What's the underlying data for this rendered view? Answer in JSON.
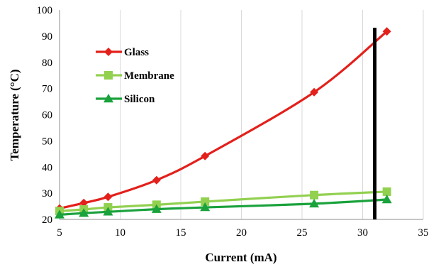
{
  "chart_data": {
    "type": "line",
    "xlabel": "Current  (mA)",
    "ylabel": "Temperature  (°C)",
    "xlim": [
      5,
      35
    ],
    "ylim": [
      20,
      100
    ],
    "xticks": [
      5,
      10,
      15,
      20,
      25,
      30,
      35
    ],
    "yticks": [
      20,
      30,
      40,
      50,
      60,
      70,
      80,
      90,
      100
    ],
    "grid": "vertical",
    "legend_position": "top-left",
    "series": [
      {
        "name": "Glass",
        "color": "#e3201b",
        "marker": "diamond",
        "x": [
          5,
          7,
          9,
          13,
          17,
          26,
          32
        ],
        "y": [
          24.2,
          26.3,
          28.6,
          35.0,
          44.2,
          68.6,
          91.8
        ]
      },
      {
        "name": "Membrane",
        "color": "#92d050",
        "marker": "square",
        "x": [
          5,
          7,
          9,
          13,
          17,
          26,
          32
        ],
        "y": [
          23.2,
          23.8,
          24.6,
          25.6,
          26.8,
          29.3,
          30.6
        ]
      },
      {
        "name": "Silicon",
        "color": "#1aa23c",
        "marker": "triangle",
        "x": [
          5,
          7,
          9,
          13,
          17,
          26,
          32
        ],
        "y": [
          21.8,
          22.4,
          22.9,
          23.9,
          24.6,
          26.0,
          27.6
        ]
      }
    ],
    "annotations": [
      {
        "type": "vertical-line",
        "x": 31,
        "y_range": [
          20,
          93.2
        ],
        "color": "#000000"
      }
    ]
  }
}
